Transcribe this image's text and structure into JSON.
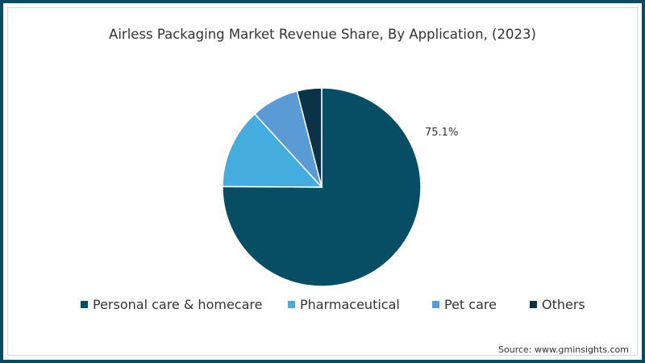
{
  "chart_data": {
    "type": "pie",
    "title": "Airless Packaging Market Revenue Share, By Application, (2023)",
    "categories": [
      "Personal care & homecare",
      "Pharmaceutical",
      "Pet care",
      "Others"
    ],
    "values": [
      75.1,
      13.1,
      7.8,
      4.0
    ],
    "colors": [
      "#074d63",
      "#45ace0",
      "#5b9bd5",
      "#0a3347"
    ],
    "labels_shown": {
      "Personal care & homecare": "75.1%"
    },
    "legend_position": "bottom",
    "start_angle_deg": 0,
    "direction": "clockwise",
    "source": "Source: www.gminsights.com"
  },
  "title": "Airless Packaging Market Revenue Share, By Application, (2023)",
  "data_label": "75.1%",
  "legend": [
    {
      "label": "Personal care & homecare",
      "color": "#074d63"
    },
    {
      "label": "Pharmaceutical",
      "color": "#45ace0"
    },
    {
      "label": "Pet care",
      "color": "#5b9bd5"
    },
    {
      "label": "Others",
      "color": "#0a3347"
    }
  ],
  "source": "Source: www.gminsights.com",
  "frame_color": "#0b4a60"
}
